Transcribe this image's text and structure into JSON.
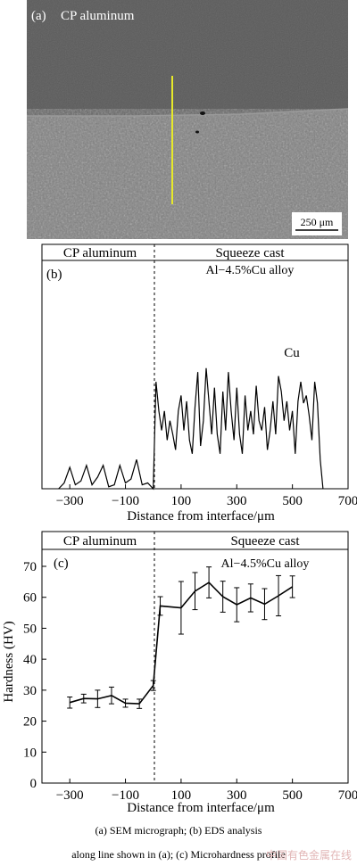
{
  "panel_a": {
    "label": "(a)",
    "title": "CP aluminum",
    "scale_bar": "250 μm"
  },
  "chart_data": [
    {
      "type": "line",
      "panel_label": "(b)",
      "region_left": "CP aluminum",
      "region_right_line1": "Squeeze cast",
      "region_right_line2": "Al−4.5%Cu alloy",
      "series_label": "Cu",
      "xlabel": "Distance from interface/μm",
      "ylabel": "",
      "xlim": [
        -400,
        700
      ],
      "ylim": [
        0,
        1
      ],
      "xticks": [
        -300,
        -100,
        100,
        300,
        500,
        700
      ],
      "xtick_labels": [
        "−300",
        "−100",
        "100",
        "300",
        "500",
        "700"
      ],
      "x": [
        -340,
        -320,
        -300,
        -280,
        -260,
        -240,
        -220,
        -200,
        -180,
        -160,
        -140,
        -120,
        -100,
        -80,
        -60,
        -40,
        -20,
        0,
        10,
        20,
        30,
        40,
        50,
        60,
        70,
        80,
        90,
        100,
        110,
        120,
        130,
        140,
        150,
        160,
        170,
        180,
        190,
        200,
        210,
        220,
        230,
        240,
        250,
        260,
        270,
        280,
        290,
        300,
        310,
        320,
        330,
        340,
        350,
        360,
        370,
        380,
        390,
        400,
        410,
        420,
        430,
        440,
        450,
        460,
        470,
        480,
        490,
        500,
        510,
        520,
        530,
        540,
        550,
        560,
        570,
        580,
        590,
        600,
        610
      ],
      "y": [
        0,
        0.03,
        0.11,
        0.02,
        0.04,
        0.12,
        0.02,
        0.06,
        0.12,
        0.01,
        0.02,
        0.12,
        0.03,
        0.05,
        0.15,
        0.02,
        0.03,
        0.0,
        0.55,
        0.4,
        0.3,
        0.4,
        0.25,
        0.35,
        0.28,
        0.2,
        0.4,
        0.48,
        0.3,
        0.45,
        0.25,
        0.18,
        0.42,
        0.6,
        0.22,
        0.35,
        0.62,
        0.45,
        0.28,
        0.52,
        0.28,
        0.18,
        0.5,
        0.3,
        0.6,
        0.4,
        0.25,
        0.52,
        0.28,
        0.18,
        0.48,
        0.3,
        0.4,
        0.28,
        0.53,
        0.35,
        0.3,
        0.42,
        0.2,
        0.3,
        0.45,
        0.28,
        0.58,
        0.5,
        0.35,
        0.45,
        0.3,
        0.4,
        0.18,
        0.45,
        0.55,
        0.44,
        0.48,
        0.38,
        0.25,
        0.55,
        0.44,
        0.15,
        0.0
      ]
    },
    {
      "type": "line",
      "panel_label": "(c)",
      "region_left": "CP aluminum",
      "region_right_line1": "Squeeze cast",
      "region_right_line2": "Al−4.5%Cu alloy",
      "xlabel": "Distance from interface/μm",
      "ylabel": "Hardness (HV)",
      "xlim": [
        -400,
        700
      ],
      "ylim": [
        0,
        75
      ],
      "xticks": [
        -300,
        -100,
        100,
        300,
        500,
        700
      ],
      "xtick_labels": [
        "−300",
        "−100",
        "100",
        "300",
        "500",
        "700"
      ],
      "yticks": [
        0,
        10,
        20,
        30,
        40,
        50,
        60,
        70
      ],
      "x": [
        -300,
        -250,
        -200,
        -150,
        -100,
        -50,
        0,
        25,
        100,
        150,
        200,
        250,
        300,
        350,
        400,
        450,
        500
      ],
      "y": [
        26,
        27.3,
        27.2,
        28.3,
        25.8,
        25.6,
        31.5,
        57.2,
        56.6,
        62,
        64.8,
        60.2,
        57.6,
        59.8,
        57.8,
        60.5,
        63.4
      ],
      "error": [
        1.8,
        1.4,
        2.8,
        2.7,
        1.3,
        1.5,
        1.6,
        3.0,
        8.5,
        6.0,
        5.0,
        5.0,
        5.5,
        4.5,
        5.0,
        6.5,
        3.5
      ]
    }
  ],
  "captions": {
    "line1": "(a) SEM micrograph; (b) EDS analysis",
    "line2": "along line shown in (a); (c) Microhardness profile"
  },
  "watermark": "中国有色金属在线"
}
